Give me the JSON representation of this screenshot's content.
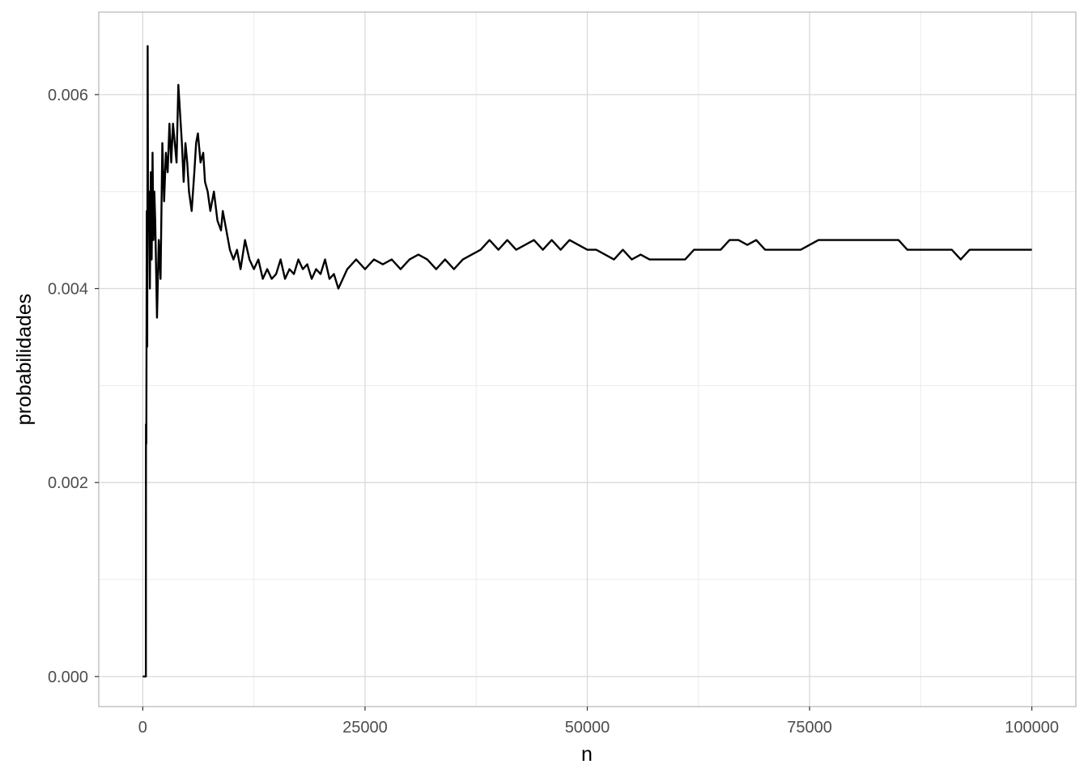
{
  "chart_data": {
    "type": "line",
    "title": "",
    "xlabel": "n",
    "ylabel": "probabilidades",
    "xlim": [
      -4950,
      104950
    ],
    "ylim": [
      -0.00031,
      0.00685
    ],
    "x_ticks": [
      0,
      25000,
      50000,
      75000,
      100000
    ],
    "x_tick_labels": [
      "0",
      "25000",
      "50000",
      "75000",
      "100000"
    ],
    "y_ticks": [
      0.0,
      0.002,
      0.004,
      0.006
    ],
    "y_tick_labels": [
      "0.000",
      "0.002",
      "0.004",
      "0.006"
    ],
    "y_minor_ticks": [
      0.001,
      0.003,
      0.005
    ],
    "x_minor_ticks": [
      12500,
      37500,
      62500,
      87500
    ],
    "grid": true,
    "legend": "none",
    "colors": {
      "line": "#000000",
      "grid_major": "#d9d9d9",
      "grid_minor": "#ebebeb",
      "panel_border": "#b3b3b3",
      "background": "#ffffff"
    },
    "series": [
      {
        "x": [
          1,
          300,
          350,
          360,
          400,
          450,
          500,
          550,
          600,
          700,
          800,
          900,
          1000,
          1100,
          1200,
          1300,
          1400,
          1600,
          1800,
          2000,
          2200,
          2400,
          2600,
          2800,
          3000,
          3200,
          3400,
          3600,
          3800,
          4000,
          4200,
          4400,
          4600,
          4800,
          5000,
          5200,
          5500,
          5800,
          6000,
          6200,
          6500,
          6800,
          7000,
          7300,
          7600,
          8000,
          8400,
          8800,
          9000,
          9400,
          9800,
          10200,
          10600,
          11000,
          11500,
          12000,
          12500,
          13000,
          13500,
          14000,
          14500,
          15000,
          15500,
          16000,
          16500,
          17000,
          17500,
          18000,
          18500,
          19000,
          19500,
          20000,
          20500,
          21000,
          21500,
          22000,
          22500,
          23000,
          23500,
          24000,
          25000,
          26000,
          27000,
          28000,
          29000,
          30000,
          31000,
          32000,
          33000,
          34000,
          35000,
          36000,
          37000,
          38000,
          39000,
          40000,
          41000,
          42000,
          43000,
          44000,
          45000,
          46000,
          47000,
          48000,
          49000,
          50000,
          51000,
          52000,
          53000,
          54000,
          55000,
          56000,
          57000,
          58000,
          59000,
          60000,
          61000,
          62000,
          63000,
          64000,
          65000,
          66000,
          67000,
          68000,
          69000,
          70000,
          71000,
          72000,
          73000,
          74000,
          75000,
          76000,
          77000,
          78000,
          79000,
          80000,
          81000,
          82000,
          83000,
          84000,
          85000,
          86000,
          87000,
          88000,
          89000,
          90000,
          91000,
          92000,
          93000,
          94000,
          95000,
          96000,
          97000,
          98000,
          99000,
          100000
        ],
        "y": [
          0.0,
          0.0,
          0.0,
          0.0026,
          0.0024,
          0.0048,
          0.0034,
          0.0065,
          0.0046,
          0.005,
          0.004,
          0.0052,
          0.0043,
          0.0054,
          0.0045,
          0.005,
          0.0047,
          0.0037,
          0.0045,
          0.0041,
          0.0055,
          0.0049,
          0.0054,
          0.0052,
          0.0057,
          0.0053,
          0.0057,
          0.0055,
          0.0053,
          0.0061,
          0.0058,
          0.0055,
          0.0051,
          0.0055,
          0.0053,
          0.005,
          0.0048,
          0.0052,
          0.0055,
          0.0056,
          0.0053,
          0.0054,
          0.0051,
          0.005,
          0.0048,
          0.005,
          0.0047,
          0.0046,
          0.0048,
          0.0046,
          0.0044,
          0.0043,
          0.0044,
          0.0042,
          0.0045,
          0.0043,
          0.0042,
          0.0043,
          0.0041,
          0.0042,
          0.0041,
          0.00415,
          0.0043,
          0.0041,
          0.0042,
          0.00415,
          0.0043,
          0.0042,
          0.00425,
          0.0041,
          0.0042,
          0.00415,
          0.0043,
          0.0041,
          0.00415,
          0.004,
          0.0041,
          0.0042,
          0.00425,
          0.0043,
          0.0042,
          0.0043,
          0.00425,
          0.0043,
          0.0042,
          0.0043,
          0.00435,
          0.0043,
          0.0042,
          0.0043,
          0.0042,
          0.0043,
          0.00435,
          0.0044,
          0.0045,
          0.0044,
          0.0045,
          0.0044,
          0.00445,
          0.0045,
          0.0044,
          0.0045,
          0.0044,
          0.0045,
          0.00445,
          0.0044,
          0.0044,
          0.00435,
          0.0043,
          0.0044,
          0.0043,
          0.00435,
          0.0043,
          0.0043,
          0.0043,
          0.0043,
          0.0043,
          0.0044,
          0.0044,
          0.0044,
          0.0044,
          0.0045,
          0.0045,
          0.00445,
          0.0045,
          0.0044,
          0.0044,
          0.0044,
          0.0044,
          0.0044,
          0.00445,
          0.0045,
          0.0045,
          0.0045,
          0.0045,
          0.0045,
          0.0045,
          0.0045,
          0.0045,
          0.0045,
          0.0045,
          0.0044,
          0.0044,
          0.0044,
          0.0044,
          0.0044,
          0.0044,
          0.0043,
          0.0044,
          0.0044,
          0.0044,
          0.0044,
          0.0044,
          0.0044,
          0.0044,
          0.0044
        ]
      }
    ]
  }
}
